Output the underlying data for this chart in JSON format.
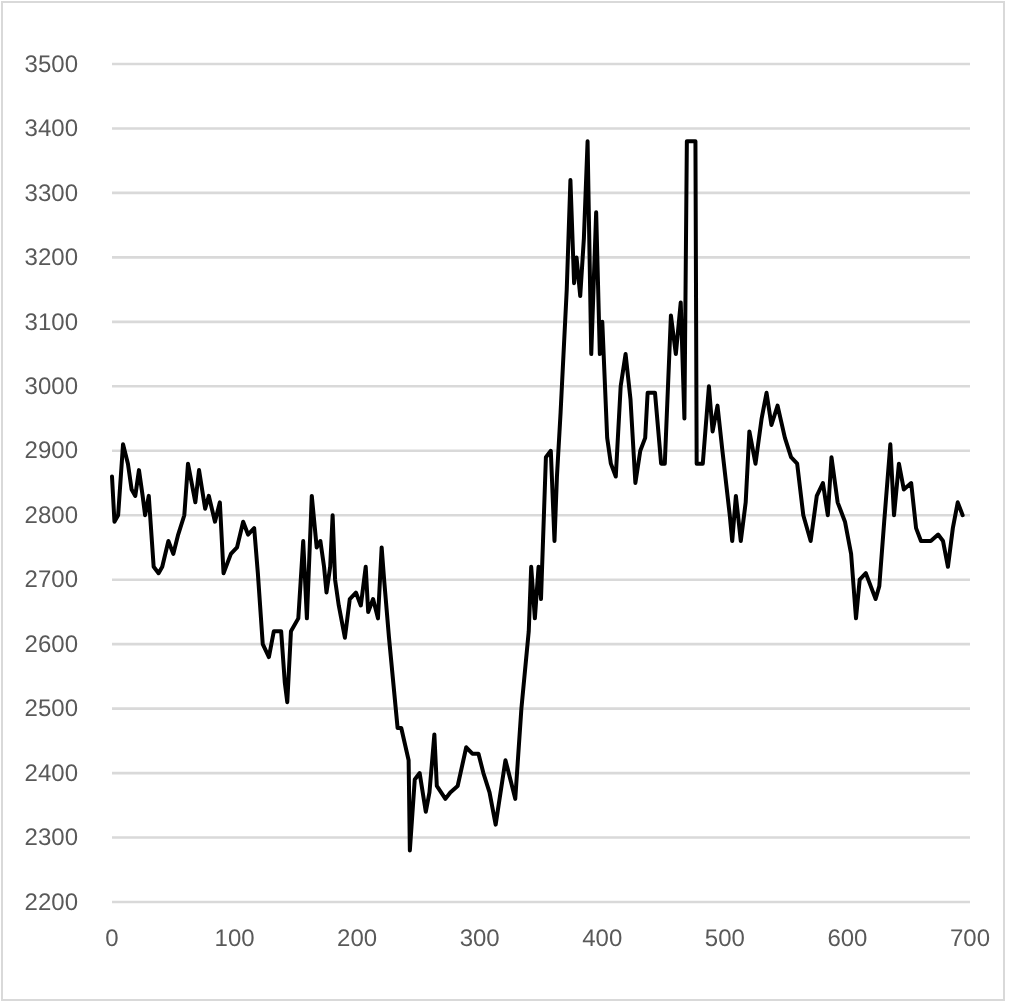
{
  "chart_data": {
    "type": "line",
    "xlim": [
      0,
      700
    ],
    "xticks": [
      0,
      100,
      200,
      300,
      400,
      500,
      600,
      700
    ],
    "ylim": [
      2200,
      3500
    ],
    "yticks": [
      2200,
      2300,
      2400,
      2500,
      2600,
      2700,
      2800,
      2900,
      3000,
      3100,
      3200,
      3300,
      3400,
      3500
    ],
    "grid": "y",
    "marker": "none",
    "line_style": "solid",
    "series": [
      {
        "color": "#000000",
        "x": [
          0,
          2,
          5,
          9,
          13,
          16,
          19,
          22,
          25,
          27,
          30,
          34,
          38,
          41,
          46,
          50,
          54,
          59,
          62,
          68,
          71,
          76,
          79,
          84,
          88,
          91,
          97,
          102,
          107,
          111,
          116,
          119,
          123,
          128,
          132,
          137,
          138,
          141,
          143,
          146,
          152,
          156,
          159,
          163,
          167,
          170,
          173,
          175,
          178,
          180,
          182,
          185,
          190,
          194,
          199,
          203,
          207,
          209,
          213,
          217,
          220,
          222,
          226,
          233,
          235,
          236,
          242,
          243,
          247,
          251,
          256,
          259,
          263,
          265,
          272,
          276,
          282,
          289,
          294,
          299,
          303,
          308,
          313,
          321,
          329,
          334,
          340,
          342,
          345,
          348,
          350,
          354,
          358,
          361,
          363,
          366,
          371,
          374,
          377,
          379,
          382,
          385,
          388,
          391,
          395,
          398,
          400,
          404,
          407,
          411,
          415,
          419,
          423,
          427,
          431,
          435,
          437,
          443,
          448,
          451,
          456,
          460,
          464,
          467,
          469,
          476,
          477,
          482,
          487,
          490,
          494,
          498,
          504,
          506,
          509,
          513,
          517,
          520,
          525,
          530,
          534,
          538,
          543,
          549,
          554,
          559,
          564,
          570,
          575,
          580,
          584,
          587,
          592,
          598,
          603,
          607,
          610,
          615,
          619,
          623,
          626,
          630,
          635,
          638,
          642,
          646,
          652,
          656,
          660,
          668,
          674,
          678,
          682,
          686,
          690,
          694
        ],
        "values": [
          2860,
          2790,
          2800,
          2910,
          2880,
          2840,
          2830,
          2870,
          2830,
          2800,
          2830,
          2720,
          2710,
          2720,
          2760,
          2740,
          2770,
          2800,
          2880,
          2820,
          2870,
          2810,
          2830,
          2790,
          2820,
          2710,
          2740,
          2750,
          2790,
          2770,
          2780,
          2710,
          2600,
          2580,
          2620,
          2620,
          2620,
          2540,
          2510,
          2620,
          2640,
          2760,
          2640,
          2830,
          2750,
          2760,
          2720,
          2680,
          2720,
          2800,
          2700,
          2660,
          2610,
          2670,
          2680,
          2660,
          2720,
          2650,
          2670,
          2640,
          2750,
          2700,
          2610,
          2470,
          2470,
          2470,
          2420,
          2280,
          2390,
          2400,
          2340,
          2370,
          2460,
          2380,
          2360,
          2370,
          2380,
          2440,
          2430,
          2430,
          2400,
          2370,
          2320,
          2420,
          2360,
          2500,
          2620,
          2720,
          2640,
          2720,
          2670,
          2890,
          2900,
          2760,
          2860,
          2960,
          3150,
          3320,
          3160,
          3200,
          3140,
          3230,
          3380,
          3050,
          3270,
          3050,
          3100,
          2920,
          2880,
          2860,
          3000,
          3050,
          2980,
          2850,
          2900,
          2920,
          2990,
          2990,
          2880,
          2880,
          3110,
          3050,
          3130,
          2950,
          3380,
          3380,
          2880,
          2880,
          3000,
          2930,
          2970,
          2900,
          2800,
          2760,
          2830,
          2760,
          2820,
          2930,
          2880,
          2950,
          2990,
          2940,
          2970,
          2920,
          2890,
          2880,
          2800,
          2760,
          2830,
          2850,
          2800,
          2890,
          2820,
          2790,
          2740,
          2640,
          2700,
          2710,
          2690,
          2670,
          2690,
          2790,
          2910,
          2800,
          2880,
          2840,
          2850,
          2780,
          2760,
          2760,
          2770,
          2760,
          2720,
          2780,
          2820,
          2800
        ]
      }
    ]
  }
}
